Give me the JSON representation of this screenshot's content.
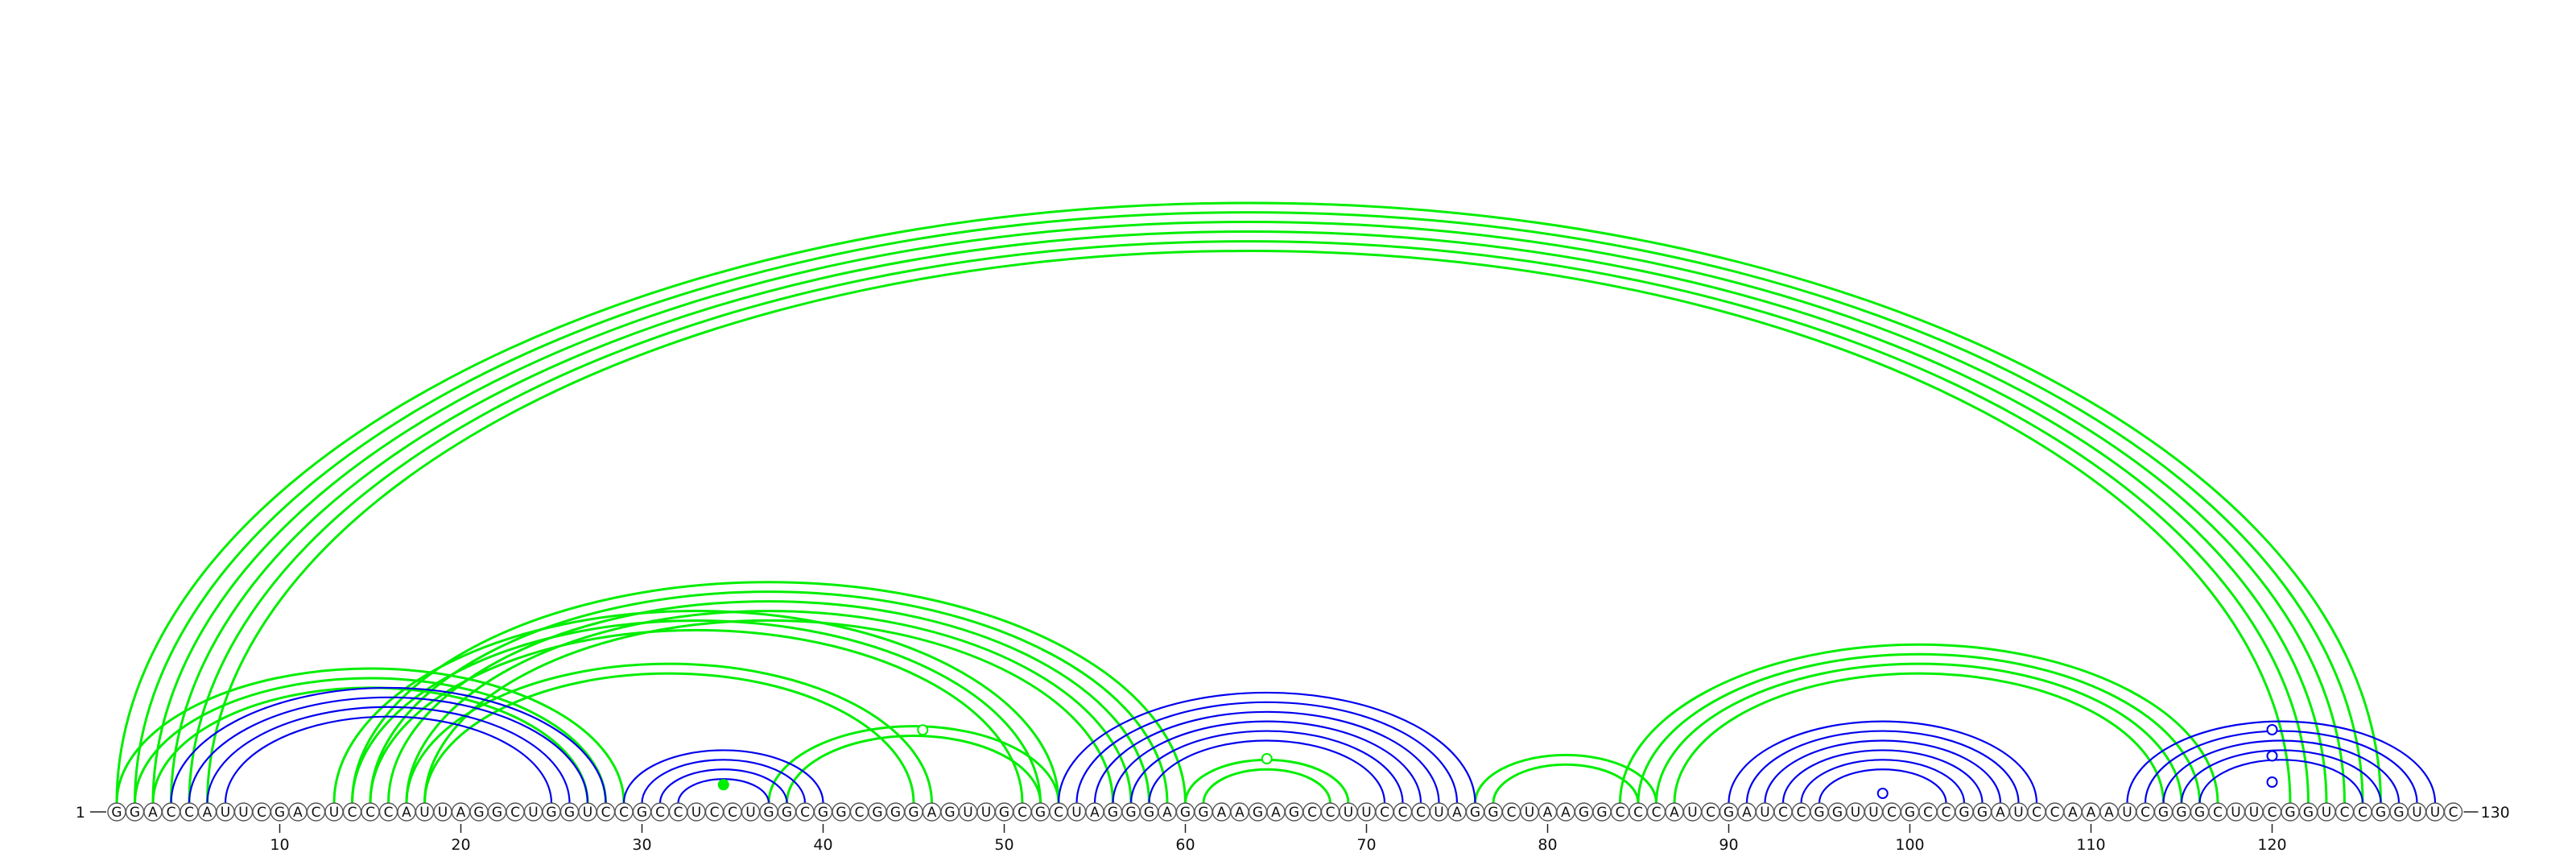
{
  "sequence": "GGACCAUUCGACUCCCAUUAGGCUGGUCCGCCUCCUGGCGGCGGGAGUUGCGCUAGGGAGGAAGAGCCUUCCCUAGGCUAAGGCCCAUCGAUCCGGUUCGCCGGAUCCAAAUCGGGCUUCGGUCCGGUUC",
  "start_label": "1",
  "end_label": "130",
  "tick_labels": [
    "10",
    "20",
    "30",
    "40",
    "50",
    "60",
    "70",
    "80",
    "90",
    "100",
    "110",
    "120"
  ],
  "colors": {
    "green": "#00ee00",
    "blue": "#0000ee",
    "backbone": "#222222"
  },
  "chart_data": {
    "type": "arc",
    "length": 130,
    "ticks": [
      10,
      20,
      30,
      40,
      50,
      60,
      70,
      80,
      90,
      100,
      110,
      120
    ],
    "groups": [
      {
        "color": "green",
        "pairs": [
          [
            1,
            126
          ],
          [
            2,
            125
          ],
          [
            3,
            124
          ],
          [
            4,
            123
          ],
          [
            5,
            122
          ],
          [
            6,
            121
          ]
        ]
      },
      {
        "color": "green",
        "pairs": [
          [
            1,
            29
          ],
          [
            2,
            28
          ],
          [
            3,
            27
          ]
        ]
      },
      {
        "color": "green",
        "pairs": [
          [
            13,
            53
          ],
          [
            14,
            52
          ],
          [
            15,
            51
          ]
        ]
      },
      {
        "color": "green",
        "pairs": [
          [
            14,
            60
          ],
          [
            15,
            59
          ],
          [
            16,
            58
          ],
          [
            17,
            57
          ],
          [
            18,
            56
          ]
        ]
      },
      {
        "color": "green",
        "pairs": [
          [
            17,
            46
          ],
          [
            18,
            45
          ]
        ]
      },
      {
        "color": "green",
        "pairs": [
          [
            37,
            53
          ],
          [
            38,
            52
          ]
        ]
      },
      {
        "color": "green",
        "pairs": [
          [
            84,
            117
          ],
          [
            85,
            116
          ],
          [
            86,
            115
          ],
          [
            87,
            114
          ]
        ]
      },
      {
        "color": "green",
        "pairs": [
          [
            76,
            86
          ],
          [
            77,
            85
          ]
        ]
      },
      {
        "color": "green",
        "pairs": [
          [
            60,
            69
          ],
          [
            61,
            68
          ]
        ]
      },
      {
        "color": "blue",
        "pairs": [
          [
            4,
            28
          ],
          [
            5,
            27
          ],
          [
            6,
            26
          ],
          [
            7,
            25
          ]
        ]
      },
      {
        "color": "blue",
        "pairs": [
          [
            29,
            40
          ],
          [
            30,
            39
          ],
          [
            31,
            38
          ],
          [
            32,
            37
          ]
        ]
      },
      {
        "color": "blue",
        "pairs": [
          [
            53,
            76
          ],
          [
            54,
            75
          ],
          [
            55,
            74
          ],
          [
            56,
            73
          ],
          [
            57,
            72
          ],
          [
            58,
            71
          ]
        ]
      },
      {
        "color": "blue",
        "pairs": [
          [
            90,
            107
          ],
          [
            91,
            106
          ],
          [
            92,
            105
          ],
          [
            93,
            104
          ],
          [
            94,
            103
          ],
          [
            95,
            102
          ]
        ]
      },
      {
        "color": "blue",
        "pairs": [
          [
            112,
            129
          ],
          [
            113,
            128
          ],
          [
            114,
            127
          ],
          [
            115,
            126
          ],
          [
            116,
            125
          ]
        ]
      }
    ],
    "markers": [
      {
        "pos": 34.5,
        "level": 0.35,
        "color": "green",
        "filled": true
      },
      {
        "pos": 45.5,
        "level": 0.55,
        "color": "green",
        "filled": false
      },
      {
        "pos": 64.5,
        "level": 0.55,
        "color": "green",
        "filled": false
      },
      {
        "pos": 98.5,
        "level": 0.2,
        "color": "blue",
        "filled": false
      },
      {
        "pos": 120,
        "level": 0.2,
        "color": "blue",
        "filled": false
      },
      {
        "pos": 120,
        "level": 0.45,
        "color": "blue",
        "filled": false
      },
      {
        "pos": 120,
        "level": 0.7,
        "color": "blue",
        "filled": false
      }
    ]
  }
}
